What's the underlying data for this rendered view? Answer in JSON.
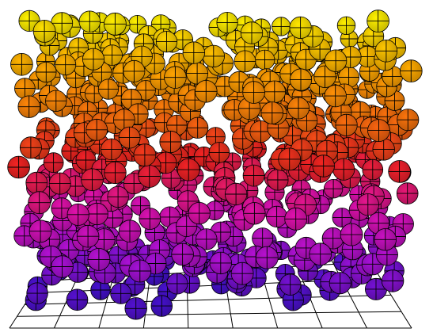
{
  "chart_data": {
    "type": "scatter",
    "variant": "3d-spheres",
    "title": "",
    "xlabel": "",
    "ylabel": "",
    "zlabel": "",
    "grid": true,
    "legend": "none",
    "n_points": 700,
    "seed": 7,
    "colormap": "plasma",
    "color_stops": [
      "#4010c0",
      "#a010c8",
      "#d010a0",
      "#e02020",
      "#e8700a",
      "#f0a000",
      "#f0e000"
    ],
    "floor_grid": {
      "x_divisions": 9,
      "y_divisions": 5
    },
    "point_cloud_description_values": {
      "height_range": [
        0,
        1
      ],
      "density": "uniform random"
    }
  }
}
